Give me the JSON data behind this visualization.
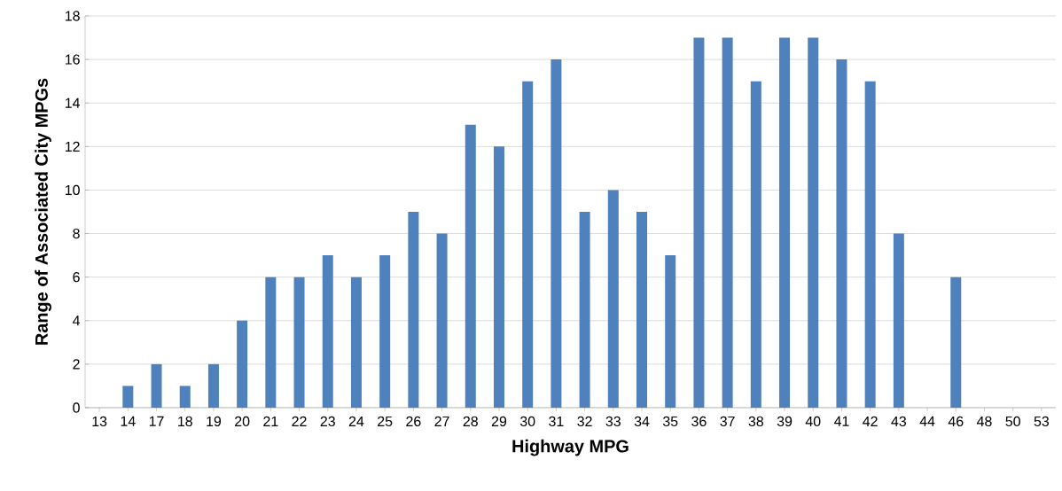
{
  "chart_data": {
    "type": "bar",
    "xlabel": "Highway MPG",
    "ylabel": "Range  of Associated City MPGs",
    "categories": [
      "13",
      "14",
      "17",
      "18",
      "19",
      "20",
      "21",
      "22",
      "23",
      "24",
      "25",
      "26",
      "27",
      "28",
      "29",
      "30",
      "31",
      "32",
      "33",
      "34",
      "35",
      "36",
      "37",
      "38",
      "39",
      "40",
      "41",
      "42",
      "43",
      "44",
      "46",
      "48",
      "50",
      "53"
    ],
    "values": [
      0,
      1,
      2,
      1,
      2,
      4,
      6,
      6,
      7,
      6,
      7,
      9,
      8,
      13,
      12,
      15,
      16,
      9,
      10,
      9,
      7,
      17,
      17,
      15,
      17,
      17,
      16,
      15,
      8,
      0,
      6,
      0,
      0,
      0
    ],
    "color": "#4f81bd",
    "ylim": [
      0,
      18
    ],
    "yticks": [
      0,
      2,
      4,
      6,
      8,
      10,
      12,
      14,
      16,
      18
    ],
    "grid": "y"
  }
}
